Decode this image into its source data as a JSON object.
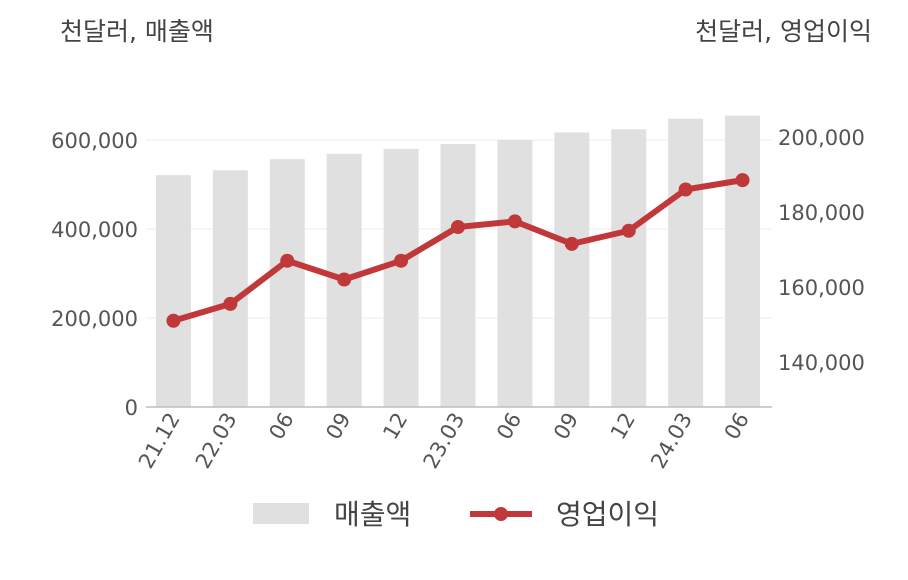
{
  "chart_data": {
    "type": "bar+line",
    "left_unit": "천달러, 매출액",
    "right_unit": "천달러, 영업이익",
    "categories": [
      "21.12",
      "22.03",
      "06",
      "09",
      "12",
      "23.03",
      "06",
      "09",
      "12",
      "24.03",
      "06"
    ],
    "series": [
      {
        "name": "매출액",
        "type": "bar",
        "axis": "left",
        "color": "#e0e0e0",
        "values": [
          521000,
          532000,
          557000,
          569000,
          580000,
          591000,
          600000,
          617000,
          624000,
          648000,
          655000
        ]
      },
      {
        "name": "영업이익",
        "type": "line",
        "axis": "right",
        "color": "#c0383a",
        "values": [
          151000,
          155500,
          167000,
          162000,
          167000,
          176000,
          177500,
          171500,
          175000,
          186000,
          188500
        ]
      }
    ],
    "left_axis": {
      "ylim": [
        0,
        600000
      ],
      "ticks": [
        "0",
        "200,000",
        "400,000",
        "600,000"
      ]
    },
    "right_axis": {
      "ylim": [
        140000,
        200000
      ],
      "ticks": [
        "140,000",
        "160,000",
        "180,000",
        "200,000"
      ]
    },
    "grid": true,
    "legend_position": "bottom"
  }
}
